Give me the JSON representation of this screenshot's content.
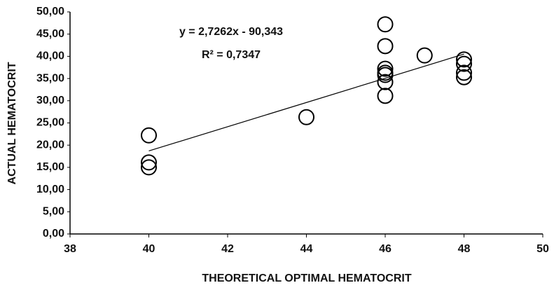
{
  "chart_data": {
    "type": "scatter",
    "xlabel": "THEORETICAL OPTIMAL HEMATOCRIT",
    "ylabel": "ACTUAL HEMATOCRIT",
    "equation": "y = 2,7262x - 90,343",
    "r_squared_label": "R² = 0,7347",
    "series": [
      {
        "color": "#000000",
        "x": [
          40,
          40,
          40,
          44,
          46,
          46,
          46,
          46,
          46,
          46,
          46,
          47,
          48,
          48,
          48,
          48
        ],
        "values": [
          22.2,
          16.1,
          15.0,
          26.3,
          47.2,
          42.3,
          37.2,
          36.3,
          34.2,
          31.1,
          35.8,
          40.2,
          39.3,
          38.3,
          36.3,
          35.3
        ]
      }
    ],
    "trendline": {
      "color": "#000000",
      "x": [
        40,
        48
      ],
      "values": [
        18.7,
        40.5
      ]
    },
    "xlim": [
      38,
      50
    ],
    "xticks": [
      38,
      40,
      42,
      44,
      46,
      48,
      50
    ],
    "ylim": [
      0,
      50
    ],
    "yticks": [
      {
        "value": 0,
        "label": "0,00"
      },
      {
        "value": 5,
        "label": "5,00"
      },
      {
        "value": 10,
        "label": "10,00"
      },
      {
        "value": 15,
        "label": "15,00"
      },
      {
        "value": 20,
        "label": "20,00"
      },
      {
        "value": 25,
        "label": "25,00"
      },
      {
        "value": 30,
        "label": "30,00"
      },
      {
        "value": 35,
        "label": "35,00"
      },
      {
        "value": 40,
        "label": "40,00"
      },
      {
        "value": 45,
        "label": "45,00"
      },
      {
        "value": 50,
        "label": "50,00"
      }
    ],
    "grid": false
  }
}
